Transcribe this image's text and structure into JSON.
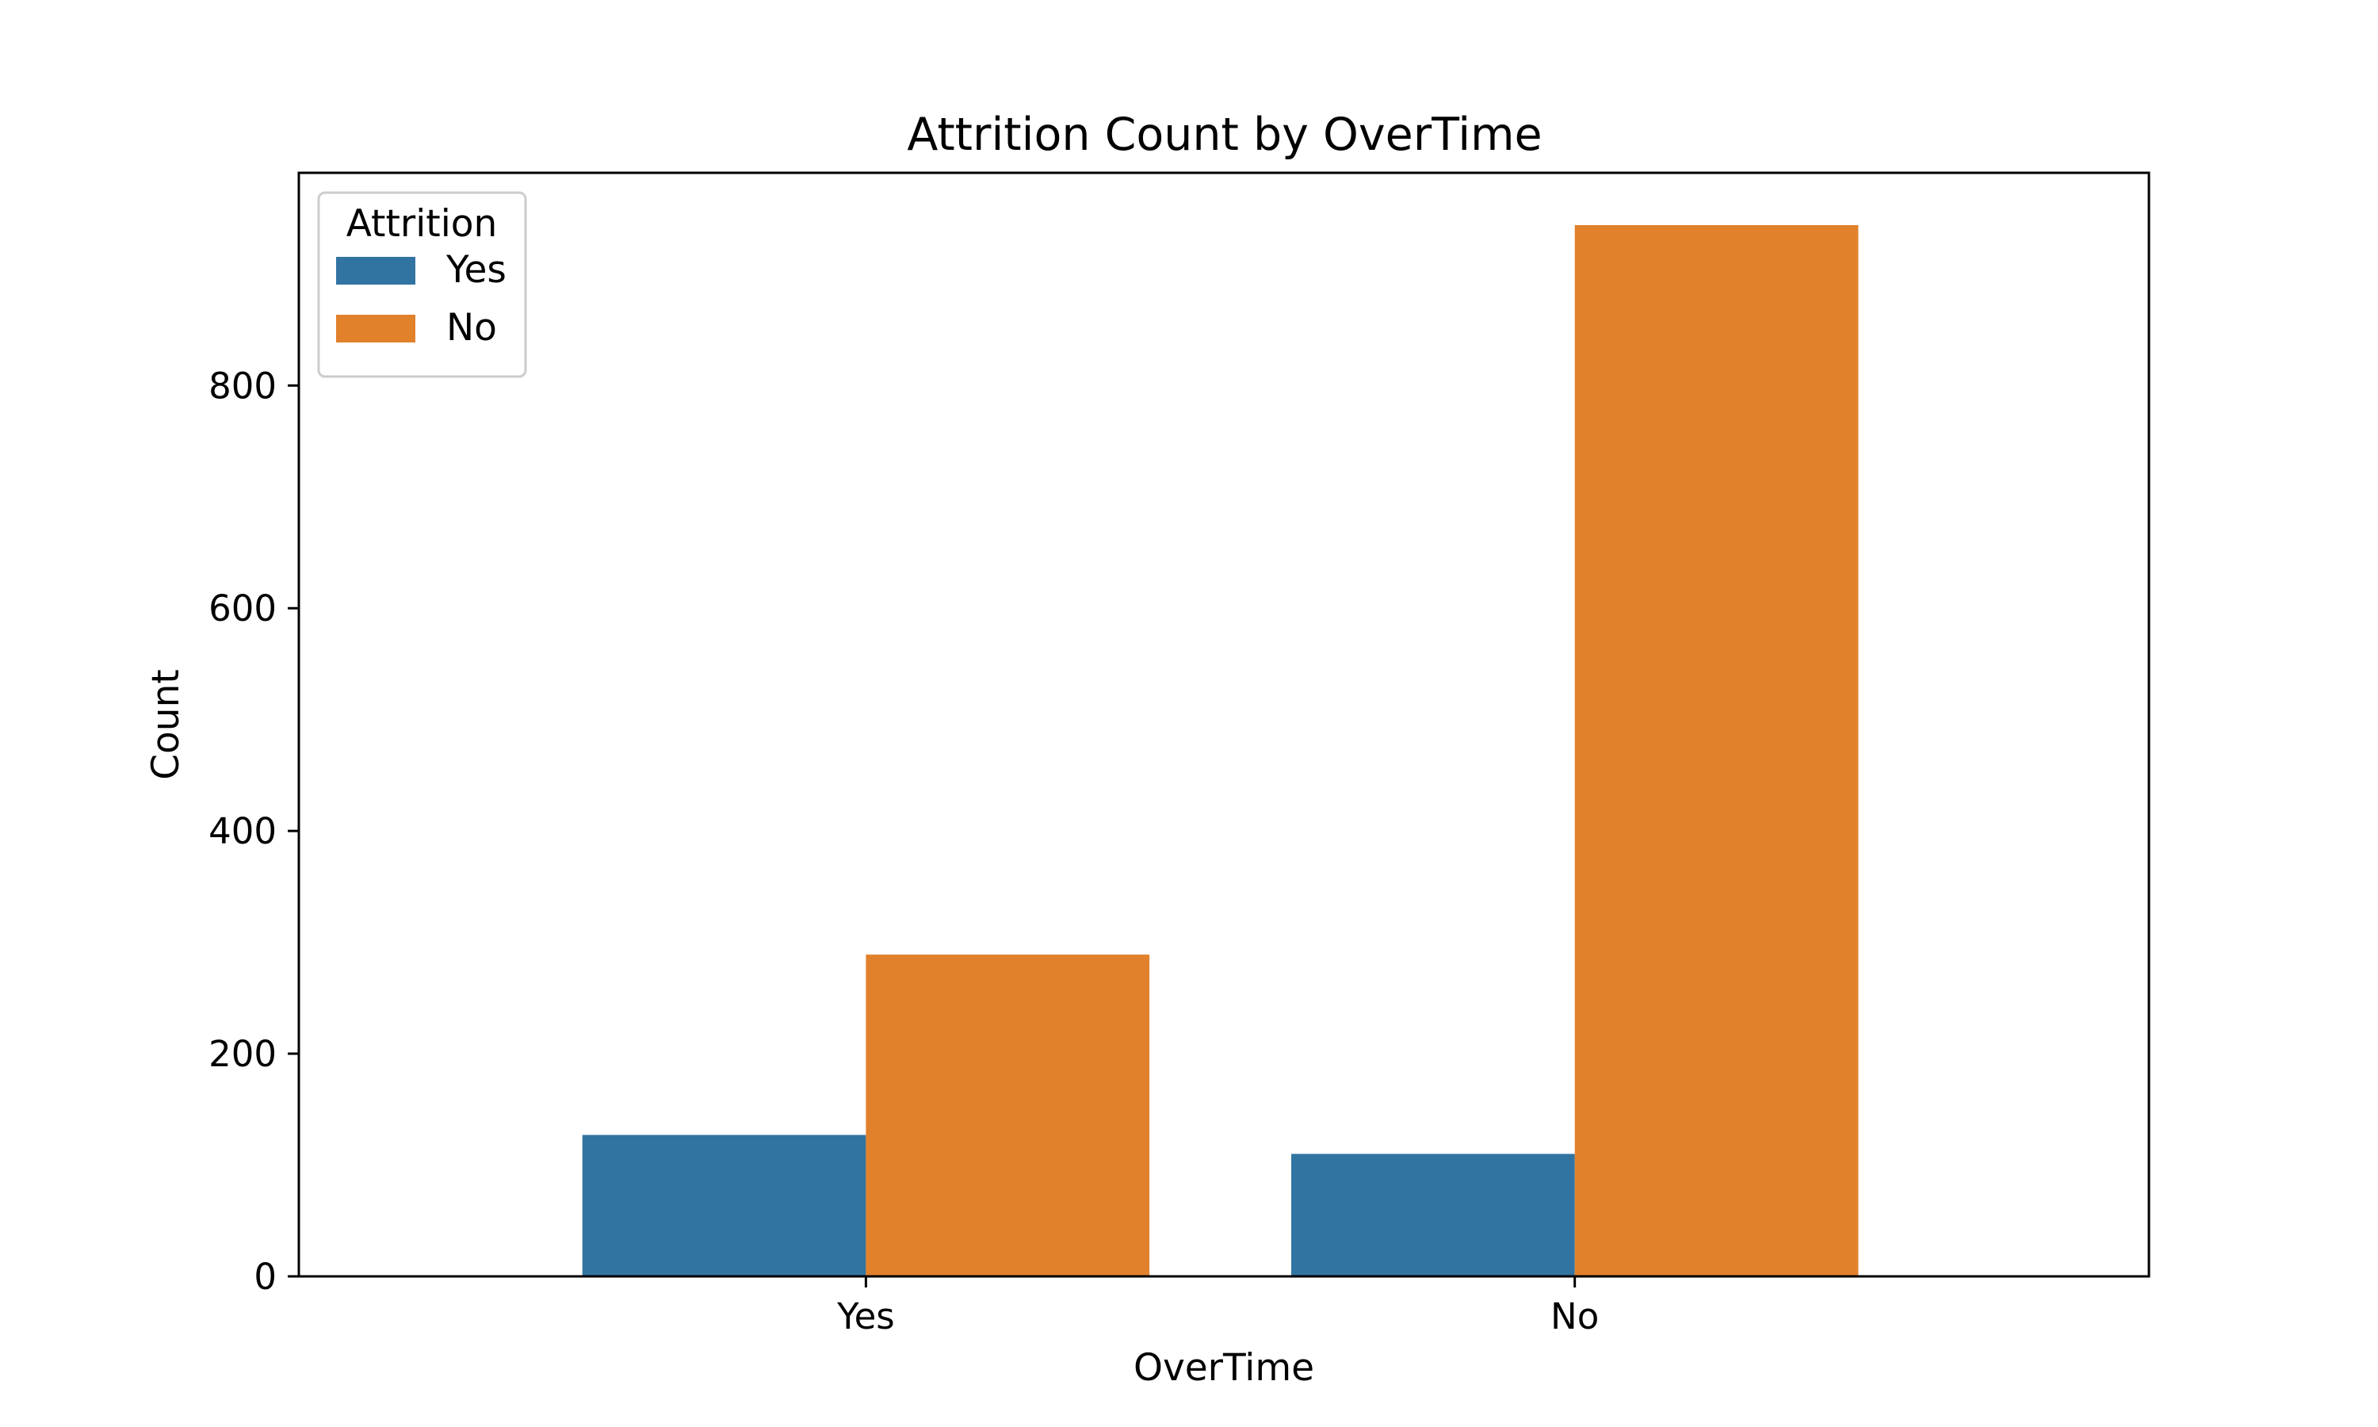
{
  "chart_data": {
    "type": "bar",
    "title": "Attrition Count by OverTime",
    "xlabel": "OverTime",
    "ylabel": "Count",
    "categories": [
      "Yes",
      "No"
    ],
    "series": [
      {
        "name": "Yes",
        "color": "#3274a1",
        "values": [
          127,
          110
        ]
      },
      {
        "name": "No",
        "color": "#e1812c",
        "values": [
          289,
          944
        ]
      }
    ],
    "ylim": [
      0,
      991
    ],
    "yticks": [
      0,
      200,
      400,
      600,
      800
    ],
    "legend": {
      "title": "Attrition",
      "position": "top-left"
    },
    "grid": false
  }
}
